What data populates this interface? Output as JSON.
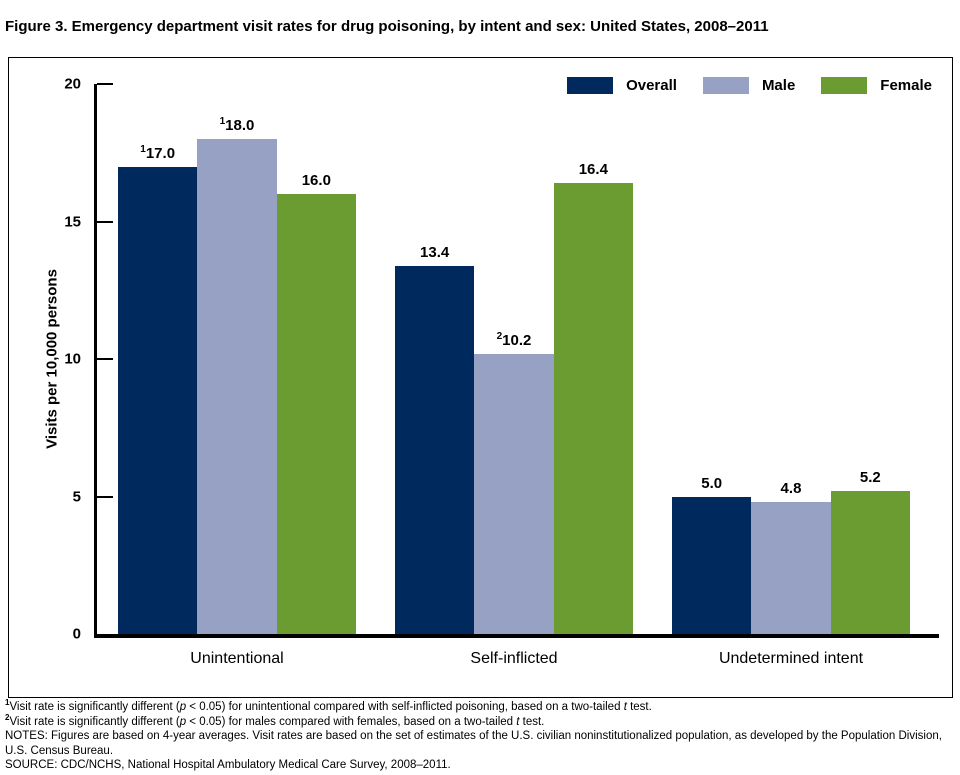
{
  "title": "Figure 3. Emergency department visit rates for drug poisoning, by intent and sex: United States, 2008–2011",
  "colors": {
    "overall": "#002a5e",
    "male": "#96a1c3",
    "female": "#6b9c31",
    "axis": "#000000"
  },
  "chart_data": {
    "type": "bar",
    "title": "Figure 3. Emergency department visit rates for drug poisoning, by intent and sex: United States, 2008–2011",
    "categories": [
      "Unintentional",
      "Self-inflicted",
      "Undetermined intent"
    ],
    "series": [
      {
        "name": "Overall",
        "color_key": "overall",
        "values": [
          17.0,
          13.4,
          5.0
        ],
        "labels": [
          "17.0",
          "13.4",
          "5.0"
        ],
        "label_sups": [
          "1",
          "",
          ""
        ]
      },
      {
        "name": "Male",
        "color_key": "male",
        "values": [
          18.0,
          10.2,
          4.8
        ],
        "labels": [
          "18.0",
          "10.2",
          "4.8"
        ],
        "label_sups": [
          "1",
          "2",
          ""
        ]
      },
      {
        "name": "Female",
        "color_key": "female",
        "values": [
          16.0,
          16.4,
          5.2
        ],
        "labels": [
          "16.0",
          "16.4",
          "5.2"
        ],
        "label_sups": [
          "",
          "",
          ""
        ]
      }
    ],
    "xlabel": "",
    "ylabel": "Visits per 10,000 persons",
    "ylim": [
      0,
      20
    ],
    "yticks": [
      0,
      5,
      10,
      15,
      20
    ],
    "legend_position": "top-right",
    "grid": false
  },
  "legend": {
    "items": [
      {
        "label": "Overall"
      },
      {
        "label": "Male"
      },
      {
        "label": "Female"
      }
    ]
  },
  "footnotes": [
    [
      {
        "t": "sup",
        "v": "1"
      },
      {
        "t": "text",
        "v": "Visit rate is significantly different ("
      },
      {
        "t": "i",
        "v": "p"
      },
      {
        "t": "text",
        "v": " < 0.05) for unintentional compared with self-inflicted poisoning, based on a two-tailed "
      },
      {
        "t": "i",
        "v": "t"
      },
      {
        "t": "text",
        "v": " test."
      }
    ],
    [
      {
        "t": "sup",
        "v": "2"
      },
      {
        "t": "text",
        "v": "Visit rate is significantly different ("
      },
      {
        "t": "i",
        "v": "p"
      },
      {
        "t": "text",
        "v": " < 0.05) for males compared with females, based on a two-tailed "
      },
      {
        "t": "i",
        "v": "t"
      },
      {
        "t": "text",
        "v": " test."
      }
    ],
    [
      {
        "t": "text",
        "v": "NOTES: Figures are based on 4-year averages. Visit rates are based on the set of estimates of the U.S. civilian noninstitutionalized population, as developed by the Population Division, U.S. Census Bureau."
      }
    ],
    [
      {
        "t": "text",
        "v": "SOURCE: CDC/NCHS, National Hospital Ambulatory Medical Care Survey, 2008–2011."
      }
    ]
  ]
}
